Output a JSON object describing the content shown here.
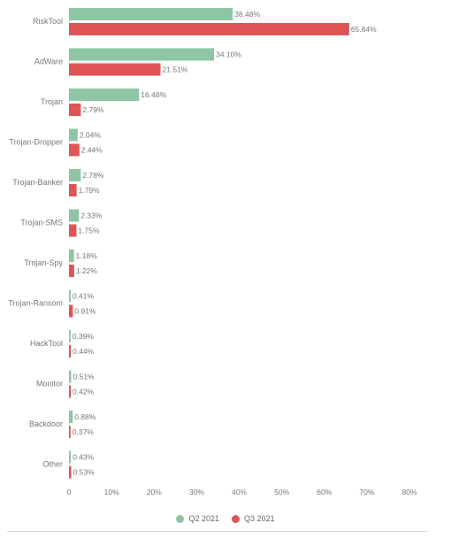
{
  "colors": {
    "q2": "#8ec5a4",
    "q3": "#df5454",
    "axis_text": "#777777",
    "grid": "#e7e7e7"
  },
  "chart_data": {
    "type": "bar",
    "orientation": "horizontal",
    "categories": [
      "RiskTool",
      "AdWare",
      "Trojan",
      "Trojan-Dropper",
      "Trojan-Banker",
      "Trojan-SMS",
      "Trojan-Spy",
      "Trojan-Ransom",
      "HackTool",
      "Monitor",
      "Backdoor",
      "Other"
    ],
    "series": [
      {
        "name": "Q2 2021",
        "values": [
          38.48,
          34.1,
          16.48,
          2.04,
          2.78,
          2.33,
          1.18,
          0.41,
          0.39,
          0.51,
          0.88,
          0.43
        ],
        "labels": [
          "38.48%",
          "34.10%",
          "16.48%",
          "2.04%",
          "2.78%",
          "2.33%",
          "1.18%",
          "0.41%",
          "0.39%",
          "0.51%",
          "0.88%",
          "0.43%"
        ]
      },
      {
        "name": "Q3 2021",
        "values": [
          65.84,
          21.51,
          2.79,
          2.44,
          1.79,
          1.75,
          1.22,
          0.91,
          0.44,
          0.42,
          0.37,
          0.53
        ],
        "labels": [
          "65.84%",
          "21.51%",
          "2.79%",
          "2.44%",
          "1.79%",
          "1.75%",
          "1.22%",
          "0.91%",
          "0.44%",
          "0.42%",
          "0.37%",
          "0.53%"
        ]
      }
    ],
    "x_ticks": [
      0,
      10,
      20,
      30,
      40,
      50,
      60,
      70,
      80
    ],
    "x_tick_labels": [
      "0",
      "10%",
      "20%",
      "30%",
      "40%",
      "50%",
      "60%",
      "70%",
      "80%"
    ],
    "xlim": [
      0,
      80
    ],
    "grid": false,
    "legend_position": "bottom-center"
  }
}
